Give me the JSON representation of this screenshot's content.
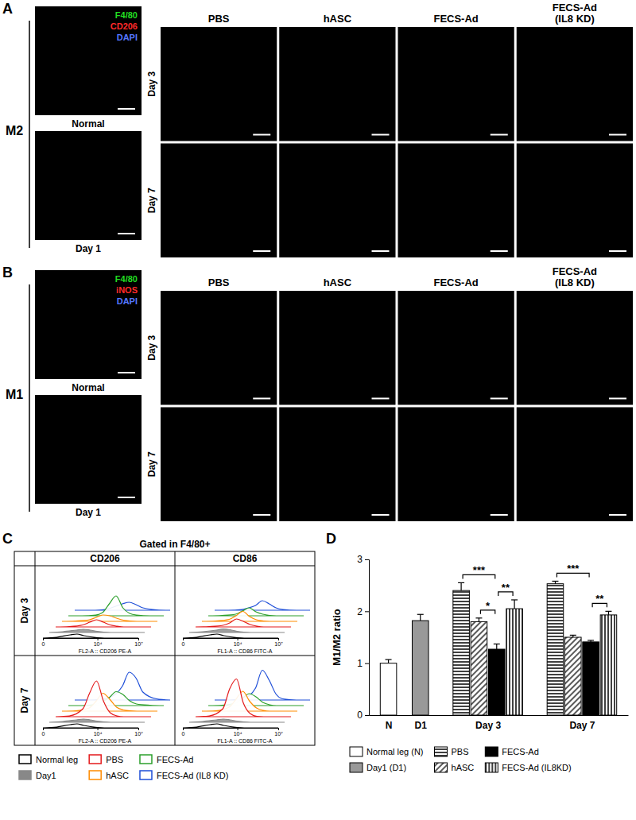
{
  "panel_a": {
    "letter": "A",
    "row_label": "M2",
    "channels": [
      {
        "label": "F4/80",
        "color": "#22dd22"
      },
      {
        "label": "CD206",
        "color": "#ff2a2a"
      },
      {
        "label": "DAPI",
        "color": "#5577ff"
      }
    ],
    "controls": [
      "Normal",
      "Day 1"
    ],
    "columns": [
      "PBS",
      "hASC",
      "FECS-Ad",
      "FECS-Ad (IL8 KD)"
    ],
    "rows": [
      "Day 3",
      "Day 7"
    ]
  },
  "panel_b": {
    "letter": "B",
    "row_label": "M1",
    "channels": [
      {
        "label": "F4/80",
        "color": "#22dd22"
      },
      {
        "label": "iNOS",
        "color": "#ff2a2a"
      },
      {
        "label": "DAPI",
        "color": "#5577ff"
      }
    ],
    "controls": [
      "Normal",
      "Day 1"
    ],
    "columns": [
      "PBS",
      "hASC",
      "FECS-Ad",
      "FECS-Ad (IL8 KD)"
    ],
    "rows": [
      "Day 3",
      "Day 7"
    ]
  },
  "chart_data": [
    {
      "type": "line",
      "letter": "C",
      "title": "Gated in F4/80+",
      "columns": [
        "CD206",
        "CD86"
      ],
      "rows": [
        "Day 3",
        "Day 7"
      ],
      "xlabels": [
        "FL2-A :: CD206 PE-A",
        "FL1-A :: CD86 FITC-A"
      ],
      "x": [
        0,
        1,
        2,
        2.5,
        3,
        3.5,
        4,
        4.5,
        5,
        6,
        7
      ],
      "xlim": [
        0,
        7
      ],
      "xticks": [
        {
          "value": 0,
          "label": "0"
        },
        {
          "value": 4,
          "label": "10⁴"
        },
        {
          "value": 7,
          "label": "10⁷"
        }
      ],
      "ylim": [
        0,
        100
      ],
      "tick_labels": "x",
      "legend": "bottom",
      "series": [
        {
          "name": "Normal leg",
          "color": "#000000"
        },
        {
          "name": "Day1",
          "color": "#888888"
        },
        {
          "name": "PBS",
          "color": "#e41a1c"
        },
        {
          "name": "hASC",
          "color": "#ff8c00"
        },
        {
          "name": "FECS-Ad",
          "color": "#2ca02c"
        },
        {
          "name": "FECS-Ad (IL8 KD)",
          "color": "#1f4fd8"
        }
      ],
      "panels": [
        {
          "values": [
            [
              0,
              2,
              8,
              10,
              6,
              3,
              1,
              0,
              0,
              0,
              0
            ],
            [
              0,
              2,
              6,
              8,
              6,
              3,
              1,
              0,
              0,
              0,
              0
            ],
            [
              0,
              1,
              5,
              12,
              18,
              12,
              5,
              2,
              0,
              0,
              0
            ],
            [
              0,
              1,
              4,
              10,
              16,
              14,
              8,
              3,
              1,
              0,
              0
            ],
            [
              0,
              0,
              2,
              8,
              30,
              50,
              20,
              6,
              2,
              0,
              0
            ],
            [
              0,
              0,
              1,
              4,
              10,
              16,
              20,
              14,
              6,
              1,
              0
            ]
          ]
        },
        {
          "values": [
            [
              0,
              2,
              8,
              10,
              6,
              3,
              1,
              0,
              0,
              0,
              0
            ],
            [
              0,
              2,
              6,
              9,
              7,
              3,
              1,
              0,
              0,
              0,
              0
            ],
            [
              0,
              1,
              4,
              10,
              20,
              14,
              6,
              2,
              0,
              0,
              0
            ],
            [
              0,
              1,
              5,
              14,
              25,
              12,
              4,
              1,
              0,
              0,
              0
            ],
            [
              0,
              1,
              4,
              12,
              20,
              10,
              4,
              1,
              0,
              0,
              0
            ],
            [
              0,
              0,
              2,
              6,
              12,
              24,
              16,
              6,
              2,
              0,
              0
            ]
          ]
        },
        {
          "values": [
            [
              0,
              2,
              8,
              10,
              6,
              3,
              1,
              0,
              0,
              0,
              0
            ],
            [
              0,
              2,
              6,
              8,
              6,
              3,
              1,
              0,
              0,
              0,
              0
            ],
            [
              0,
              2,
              20,
              60,
              90,
              40,
              10,
              2,
              0,
              0,
              0
            ],
            [
              0,
              1,
              8,
              25,
              45,
              30,
              10,
              3,
              1,
              0,
              0
            ],
            [
              0,
              0,
              3,
              10,
              20,
              35,
              28,
              12,
              4,
              1,
              0
            ],
            [
              0,
              0,
              2,
              6,
              15,
              35,
              70,
              55,
              20,
              3,
              0
            ]
          ]
        },
        {
          "values": [
            [
              0,
              2,
              8,
              10,
              6,
              3,
              1,
              0,
              0,
              0,
              0
            ],
            [
              0,
              2,
              6,
              8,
              6,
              3,
              1,
              0,
              0,
              0,
              0
            ],
            [
              0,
              2,
              20,
              70,
              95,
              35,
              8,
              1,
              0,
              0,
              0
            ],
            [
              0,
              1,
              10,
              30,
              50,
              25,
              8,
              2,
              0,
              0,
              0
            ],
            [
              0,
              1,
              6,
              18,
              30,
              22,
              8,
              2,
              0,
              0,
              0
            ],
            [
              0,
              0,
              3,
              10,
              30,
              75,
              50,
              15,
              3,
              0,
              0
            ]
          ]
        }
      ]
    },
    {
      "type": "bar",
      "letter": "D",
      "ylabel": "M1/M2 ratio",
      "categories": [
        "N",
        "D1",
        "Day 3",
        "Day 7"
      ],
      "ylim": [
        0,
        3
      ],
      "yticks": [
        0,
        1,
        2,
        3
      ],
      "legend": "bottom",
      "series": [
        {
          "name": "Normal leg (N)",
          "color": "#ffffff",
          "values": [
            1.0,
            null,
            null,
            null
          ],
          "errors": [
            0.07,
            null,
            null,
            null
          ]
        },
        {
          "name": "Day1 (D1)",
          "color": "#999999",
          "values": [
            null,
            1.82,
            null,
            null
          ],
          "errors": [
            null,
            0.12,
            null,
            null
          ]
        },
        {
          "name": "PBS",
          "color": "#000000",
          "values": [
            null,
            null,
            2.4,
            2.53
          ],
          "errors": [
            null,
            null,
            0.15,
            0.05
          ]
        },
        {
          "name": "hASC",
          "color": "#000000",
          "values": [
            null,
            null,
            1.8,
            1.5
          ],
          "errors": [
            null,
            null,
            0.07,
            0.04
          ]
        },
        {
          "name": "FECS-Ad",
          "color": "#000000",
          "values": [
            null,
            null,
            1.27,
            1.41
          ],
          "errors": [
            null,
            null,
            0.1,
            0.03
          ]
        },
        {
          "name": "FECS-Ad (IL8KD)",
          "color": "#000000",
          "values": [
            null,
            null,
            2.05,
            1.93
          ],
          "errors": [
            null,
            null,
            0.17,
            0.07
          ]
        }
      ],
      "annotations": [
        {
          "category": 2,
          "series": [
            3,
            4
          ],
          "text": "*"
        },
        {
          "category": 2,
          "series": [
            4,
            5
          ],
          "text": "**"
        },
        {
          "category": 2,
          "series": [
            2,
            4
          ],
          "text": "***"
        },
        {
          "category": 3,
          "series": [
            4,
            5
          ],
          "text": "**"
        },
        {
          "category": 3,
          "series": [
            2,
            4
          ],
          "text": "***"
        }
      ]
    }
  ]
}
